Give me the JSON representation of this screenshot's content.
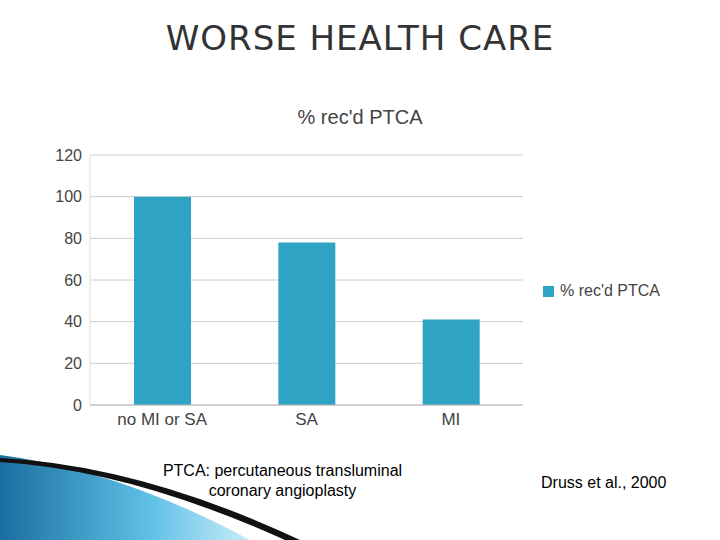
{
  "title": "WORSE HEALTH CARE",
  "footnote": "PTCA: percutaneous transluminal coronary angioplasty",
  "source": "Druss et al., 2000",
  "chart_data": {
    "type": "bar",
    "title": "% rec'd PTCA",
    "categories": [
      "no MI or SA",
      "SA",
      "MI"
    ],
    "series": [
      {
        "name": "% rec'd PTCA",
        "color": "#2ea3c4",
        "values": [
          100,
          78,
          41
        ]
      }
    ],
    "ylim": [
      0,
      120
    ],
    "yticks": [
      0,
      20,
      40,
      60,
      80,
      100,
      120
    ],
    "grid": true,
    "legend": "right"
  }
}
